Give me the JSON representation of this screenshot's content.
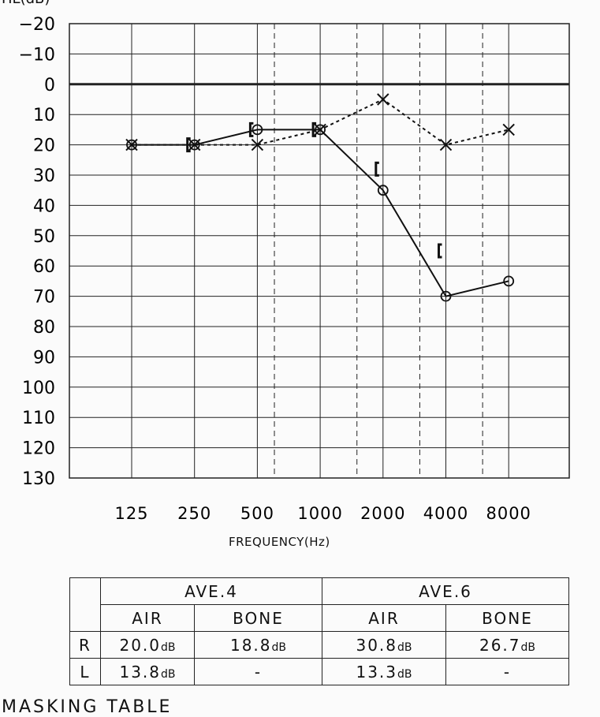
{
  "chart_data": {
    "type": "line",
    "ylabel": "HL(dB)",
    "xlabel": "FREQUENCY(Hz)",
    "x": [
      125,
      250,
      500,
      1000,
      2000,
      4000,
      8000
    ],
    "x_tick_labels": [
      "125",
      "250",
      "500",
      "1000",
      "2000",
      "4000",
      "8000"
    ],
    "x_scale": "log2",
    "intermediate_dashed_gridlines": [
      750,
      1500,
      3000,
      6000
    ],
    "ylim": [
      -20,
      130
    ],
    "y_inverted": true,
    "y_ticks": [
      -20,
      -10,
      0,
      10,
      20,
      30,
      40,
      50,
      60,
      70,
      80,
      90,
      100,
      110,
      120,
      130
    ],
    "grid": true,
    "series": [
      {
        "marker": "circle",
        "line": "solid",
        "x": [
          125,
          250,
          500,
          1000,
          2000,
          4000,
          8000
        ],
        "values": [
          20,
          20,
          15,
          15,
          35,
          70,
          65
        ]
      },
      {
        "marker": "cross",
        "line": "dotted",
        "x": [
          125,
          250,
          500,
          1000,
          2000,
          4000,
          8000
        ],
        "values": [
          20,
          20,
          20,
          15,
          5,
          20,
          15
        ]
      },
      {
        "marker": "bracket-left",
        "line": "none",
        "x": [
          250,
          500,
          1000,
          2000,
          4000
        ],
        "values": [
          20,
          15,
          15,
          28,
          55
        ]
      }
    ]
  },
  "table": {
    "headers": [
      "AVE.4",
      "AVE.6"
    ],
    "subheaders": [
      "AIR",
      "BONE",
      "AIR",
      "BONE"
    ],
    "unit": "dB",
    "rows": [
      {
        "label": "R",
        "cells": [
          "20.0",
          "18.8",
          "30.8",
          "26.7"
        ]
      },
      {
        "label": "L",
        "cells": [
          "13.8",
          "-",
          "13.3",
          "-"
        ]
      }
    ]
  },
  "footer": {
    "masking_label": "MASKING  TABLE"
  }
}
